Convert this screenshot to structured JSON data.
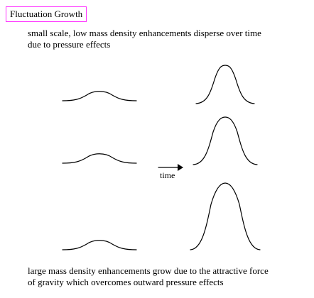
{
  "title": "Fluctuation Growth",
  "caption_top": {
    "line1": "small scale, low mass density enhancements disperse over time",
    "line2": "due to pressure effects"
  },
  "caption_bottom": {
    "line1": "large mass density enhancements grow due to the attractive force",
    "line2": "of gravity which overcomes outward pressure effects"
  },
  "arrow_label": "time",
  "colors": {
    "title_border": "#ff33ff",
    "line": "#000000"
  },
  "curves": {
    "before": [
      {
        "row": "top",
        "relative_height": 0.3,
        "relative_width": 1.0
      },
      {
        "row": "middle",
        "relative_height": 0.3,
        "relative_width": 1.0
      },
      {
        "row": "bottom",
        "relative_height": 0.3,
        "relative_width": 1.0
      }
    ],
    "after": [
      {
        "row": "top",
        "relative_height": 1.0,
        "relative_width": 0.6
      },
      {
        "row": "middle",
        "relative_height": 1.0,
        "relative_width": 0.6
      },
      {
        "row": "bottom",
        "relative_height": 1.0,
        "relative_width": 0.6
      }
    ]
  }
}
